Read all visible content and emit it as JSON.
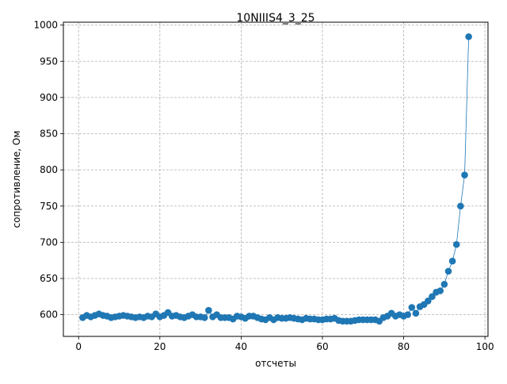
{
  "chart_data": {
    "type": "line",
    "title": "10NIIIS4_3_25",
    "xlabel": "отсчеты",
    "ylabel": "сопротивление, Ом",
    "xlim": [
      -3.75,
      100.75
    ],
    "ylim": [
      570,
      1004
    ],
    "grid": true,
    "x_ticks": [
      0,
      20,
      40,
      60,
      80,
      100
    ],
    "y_ticks": [
      600,
      650,
      700,
      750,
      800,
      850,
      900,
      950,
      1000
    ],
    "series": [
      {
        "color": "#1f77b4",
        "marker": "circle",
        "x": [
          1,
          2,
          3,
          4,
          5,
          6,
          7,
          8,
          9,
          10,
          11,
          12,
          13,
          14,
          15,
          16,
          17,
          18,
          19,
          20,
          21,
          22,
          23,
          24,
          25,
          26,
          27,
          28,
          29,
          30,
          31,
          32,
          33,
          34,
          35,
          36,
          37,
          38,
          39,
          40,
          41,
          42,
          43,
          44,
          45,
          46,
          47,
          48,
          49,
          50,
          51,
          52,
          53,
          54,
          55,
          56,
          57,
          58,
          59,
          60,
          61,
          62,
          63,
          64,
          65,
          66,
          67,
          68,
          69,
          70,
          71,
          72,
          73,
          74,
          75,
          76,
          77,
          78,
          79,
          80,
          81,
          82,
          83,
          84,
          85,
          86,
          87,
          88,
          89,
          90,
          91,
          92,
          93,
          94,
          95,
          96
        ],
        "y": [
          596,
          599,
          597,
          599,
          601,
          599,
          598,
          596,
          597,
          598,
          599,
          598,
          597,
          596,
          597,
          596,
          598,
          597,
          601,
          597,
          599,
          603,
          598,
          599,
          597,
          596,
          598,
          600,
          597,
          597,
          596,
          606,
          597,
          600,
          596,
          596,
          596,
          594,
          598,
          597,
          595,
          598,
          598,
          596,
          594,
          593,
          596,
          593,
          596,
          595,
          595,
          596,
          595,
          594,
          593,
          595,
          594,
          594,
          593,
          593,
          594,
          594,
          595,
          592,
          591,
          591,
          591,
          592,
          593,
          593,
          593,
          593,
          593,
          591,
          596,
          598,
          602,
          598,
          600,
          598,
          600,
          610,
          602,
          611,
          614,
          619,
          625,
          631,
          633,
          642,
          660,
          674,
          697,
          750,
          793,
          984
        ]
      }
    ]
  }
}
